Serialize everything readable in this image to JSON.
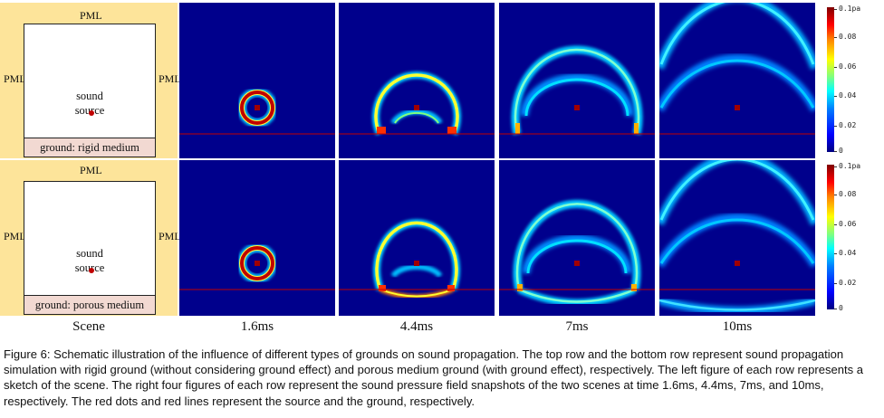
{
  "scene_sketch": {
    "pml_label": "PML",
    "source_label_line1": "sound",
    "source_label_line2": "source",
    "top_row_ground": "ground: rigid medium",
    "bottom_row_ground": "ground: porous medium"
  },
  "colorbar": {
    "top_label": "0.1pa",
    "tick_labels": [
      "0.08",
      "0.06",
      "0.04",
      "0.02",
      "0"
    ]
  },
  "column_labels": [
    "Scene",
    "1.6ms",
    "4.4ms",
    "7ms",
    "10ms"
  ],
  "caption": "Figure 6: Schematic illustration of the influence of different types of grounds on sound propagation. The top row and the bottom row represent sound propagation simulation with rigid ground (without considering ground effect) and porous medium ground (with ground effect), respectively. The left figure of each row represents a sketch of the scene. The right four figures of each row represent the sound pressure field snapshots of the two scenes at time 1.6ms, 4.4ms, 7ms, and 10ms, respectively. The red dots and red lines represent the source and the ground, respectively.",
  "colors": {
    "pml": "#fde49a",
    "field_background": "#00008c",
    "source_and_ground": "#c00000"
  }
}
